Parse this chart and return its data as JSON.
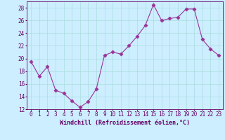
{
  "x": [
    0,
    1,
    2,
    3,
    4,
    5,
    6,
    7,
    8,
    9,
    10,
    11,
    12,
    13,
    14,
    15,
    16,
    17,
    18,
    19,
    20,
    21,
    22,
    23
  ],
  "y": [
    19.5,
    17.2,
    18.7,
    15.0,
    14.5,
    13.3,
    12.3,
    13.2,
    15.2,
    20.5,
    21.0,
    20.7,
    22.0,
    23.5,
    25.2,
    28.5,
    26.0,
    26.3,
    26.5,
    27.8,
    27.8,
    23.0,
    21.5,
    20.5
  ],
  "line_color": "#993399",
  "marker": "D",
  "bg_color": "#cceeff",
  "grid_color": "#aadddd",
  "xlabel": "Windchill (Refroidissement éolien,°C)",
  "ylim": [
    12,
    29
  ],
  "yticks": [
    12,
    14,
    16,
    18,
    20,
    22,
    24,
    26,
    28
  ],
  "xticks": [
    0,
    1,
    2,
    3,
    4,
    5,
    6,
    7,
    8,
    9,
    10,
    11,
    12,
    13,
    14,
    15,
    16,
    17,
    18,
    19,
    20,
    21,
    22,
    23
  ],
  "tick_label_color": "#660066",
  "tick_label_fontsize": 5.5,
  "xlabel_fontsize": 6.0,
  "axis_color": "#660066",
  "linewidth": 0.8,
  "markersize": 2.5
}
